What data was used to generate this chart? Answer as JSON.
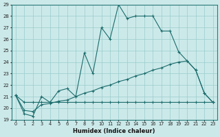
{
  "xlabel": "Humidex (Indice chaleur)",
  "background_color": "#cce9e9",
  "line_color": "#1a6b6b",
  "grid_color": "#99cccc",
  "series1_x": [
    0,
    1,
    2,
    3,
    4,
    5,
    6,
    7,
    8,
    9,
    10,
    11,
    12,
    13,
    14,
    15,
    16,
    17,
    18,
    19,
    20,
    21,
    22,
    23
  ],
  "series1_y": [
    21.1,
    19.5,
    19.3,
    21.0,
    20.5,
    21.5,
    21.7,
    21.0,
    24.8,
    23.0,
    27.0,
    26.0,
    29.0,
    27.8,
    28.0,
    28.0,
    28.0,
    26.7,
    26.7,
    24.9,
    24.1,
    23.3,
    21.3,
    20.5
  ],
  "series2_x": [
    0,
    1,
    2,
    3,
    4,
    5,
    6,
    7,
    8,
    9,
    10,
    11,
    12,
    13,
    14,
    15,
    16,
    17,
    18,
    19,
    20,
    21,
    22,
    23
  ],
  "series2_y": [
    21.1,
    20.5,
    20.5,
    20.5,
    20.5,
    20.5,
    20.5,
    20.5,
    20.5,
    20.5,
    20.5,
    20.5,
    20.5,
    20.5,
    20.5,
    20.5,
    20.5,
    20.5,
    20.5,
    20.5,
    20.5,
    20.5,
    20.5,
    20.5
  ],
  "series3_x": [
    0,
    1,
    2,
    3,
    4,
    5,
    6,
    7,
    8,
    9,
    10,
    11,
    12,
    13,
    14,
    15,
    16,
    17,
    18,
    19,
    20,
    21,
    22,
    23
  ],
  "series3_y": [
    21.1,
    19.8,
    19.7,
    20.3,
    20.4,
    20.6,
    20.7,
    21.0,
    21.3,
    21.5,
    21.8,
    22.0,
    22.3,
    22.5,
    22.8,
    23.0,
    23.3,
    23.5,
    23.8,
    24.0,
    24.1,
    23.3,
    21.3,
    20.5
  ],
  "ylim": [
    19,
    29
  ],
  "xlim": [
    -0.5,
    23.5
  ],
  "yticks": [
    19,
    20,
    21,
    22,
    23,
    24,
    25,
    26,
    27,
    28,
    29
  ],
  "xticks": [
    0,
    1,
    2,
    3,
    4,
    5,
    6,
    7,
    8,
    9,
    10,
    11,
    12,
    13,
    14,
    15,
    16,
    17,
    18,
    19,
    20,
    21,
    22,
    23
  ]
}
